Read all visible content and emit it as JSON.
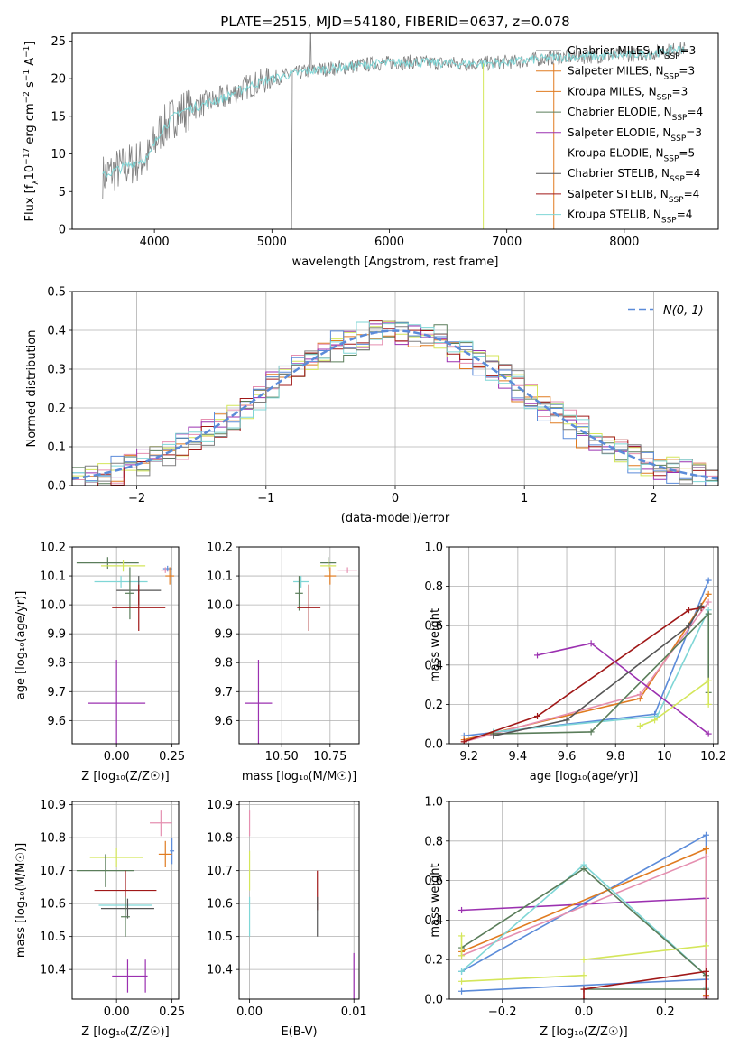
{
  "title": "PLATE=2515, MJD=54180, FIBERID=0637, z=0.078",
  "colors": {
    "grey": "#808080",
    "orange": "#e07b20",
    "pink": "#e58fb0",
    "green": "#5a7d5a",
    "purple": "#9b30b0",
    "yellowgreen": "#d4e65a",
    "darkgrey": "#555555",
    "red": "#a01818",
    "cyan": "#7fd6d6",
    "blue": "#5b8bd9"
  },
  "chart_data": [
    {
      "id": "spectrum",
      "type": "line",
      "xlabel": "wavelength [Angstrom, rest frame]",
      "ylabel": "Flux [f_λ10^-17 erg cm^-2 s^-1 A^-1]",
      "xlim": [
        3300,
        8800
      ],
      "ylim": [
        0,
        26
      ],
      "xticks": [
        4000,
        5000,
        6000,
        7000,
        8000
      ],
      "yticks": [
        0,
        5,
        10,
        15,
        20,
        25
      ],
      "grid": false,
      "legend_position": "right",
      "continuum": {
        "x": [
          3550,
          3700,
          3850,
          3950,
          4050,
          4200,
          4400,
          4600,
          4800,
          5000,
          5300,
          5600,
          5900,
          6200,
          6500,
          6800,
          7100,
          7400,
          7800,
          8200,
          8500
        ],
        "y": [
          7,
          8,
          9,
          9.5,
          13,
          15.5,
          16.5,
          17.5,
          19,
          20,
          21,
          21.5,
          22,
          22.2,
          22,
          22,
          22.3,
          22.8,
          23,
          23.3,
          24
        ]
      },
      "legend": [
        {
          "label": "Chabrier MILES, N",
          "sub": "SSP",
          "suffix": "=3",
          "color": "grey"
        },
        {
          "label": "Salpeter MILES, N",
          "sub": "SSP",
          "suffix": "=3",
          "color": "orange"
        },
        {
          "label": "Kroupa MILES, N",
          "sub": "SSP",
          "suffix": "=3",
          "color": "orange"
        },
        {
          "label": "Chabrier ELODIE, N",
          "sub": "SSP",
          "suffix": "=4",
          "color": "green"
        },
        {
          "label": "Salpeter ELODIE, N",
          "sub": "SSP",
          "suffix": "=3",
          "color": "purple"
        },
        {
          "label": "Kroupa ELODIE, N",
          "sub": "SSP",
          "suffix": "=5",
          "color": "yellowgreen"
        },
        {
          "label": "Chabrier STELIB, N",
          "sub": "SSP",
          "suffix": "=4",
          "color": "darkgrey"
        },
        {
          "label": "Salpeter STELIB, N",
          "sub": "SSP",
          "suffix": "=4",
          "color": "red"
        },
        {
          "label": "Kroupa STELIB, N",
          "sub": "SSP",
          "suffix": "=4",
          "color": "cyan"
        }
      ]
    },
    {
      "id": "residuals",
      "type": "histogram",
      "xlabel": "(data-model)/error",
      "ylabel": "Normed distribution",
      "xlim": [
        -2.5,
        2.5
      ],
      "ylim": [
        0,
        0.5
      ],
      "xticks": [
        -2,
        -1,
        0,
        1,
        2
      ],
      "yticks": [
        0.0,
        0.1,
        0.2,
        0.3,
        0.4,
        0.5
      ],
      "grid": true,
      "legend_position": "upper right",
      "gaussian_label": "N(0, 1)",
      "bin_width": 0.1,
      "histogram_colors": [
        "orange",
        "pink",
        "green",
        "purple",
        "yellowgreen",
        "red",
        "blue",
        "cyan",
        "grey"
      ]
    },
    {
      "id": "age-vs-Z",
      "type": "errorbar",
      "xlabel": "Z [log10(Z/Z☉)]",
      "ylabel": "age [log10(age/yr)]",
      "xlim": [
        -0.2,
        0.28
      ],
      "ylim": [
        9.52,
        10.2
      ],
      "xticks": [
        0.0,
        0.25
      ],
      "xtick_labels": [
        "0.00",
        "0.25"
      ],
      "yticks": [
        9.6,
        9.7,
        9.8,
        9.9,
        10.0,
        10.1,
        10.2
      ],
      "grid": true,
      "points": [
        {
          "color": "green",
          "x": -0.04,
          "xerr": 0.14,
          "y": 10.145,
          "yerr": 0.02
        },
        {
          "color": "yellowgreen",
          "x": 0.03,
          "xerr": 0.1,
          "y": 10.135,
          "yerr": 0.02
        },
        {
          "color": "blue",
          "x": 0.23,
          "xerr": 0.02,
          "y": 10.125,
          "yerr": 0.01
        },
        {
          "color": "pink",
          "x": 0.22,
          "xerr": 0.02,
          "y": 10.12,
          "yerr": 0.01
        },
        {
          "color": "orange",
          "x": 0.24,
          "xerr": 0.02,
          "y": 10.1,
          "yerr": 0.03
        },
        {
          "color": "cyan",
          "x": 0.02,
          "xerr": 0.12,
          "y": 10.08,
          "yerr": 0.02
        },
        {
          "color": "darkgrey",
          "x": 0.1,
          "xerr": 0.1,
          "y": 10.05,
          "yerr": 0.05
        },
        {
          "color": "green",
          "x": 0.06,
          "xerr": 0.02,
          "y": 10.04,
          "yerr": 0.09
        },
        {
          "color": "red",
          "x": 0.1,
          "xerr": 0.12,
          "y": 9.99,
          "yerr": 0.08
        },
        {
          "color": "purple",
          "x": 0.0,
          "xerr": 0.13,
          "y": 9.66,
          "yerr": 0.15
        }
      ]
    },
    {
      "id": "age-vs-mass",
      "type": "errorbar",
      "xlabel": "mass [log10(M/M☉)]",
      "xlim": [
        10.28,
        10.9
      ],
      "ylim": [
        9.52,
        10.2
      ],
      "xticks": [
        10.5,
        10.75
      ],
      "xtick_labels": [
        "10.50",
        "10.75"
      ],
      "yticks": [
        9.6,
        9.7,
        9.8,
        9.9,
        10.0,
        10.1,
        10.2
      ],
      "grid": true,
      "points": [
        {
          "color": "green",
          "x": 10.74,
          "xerr": 0.04,
          "y": 10.145,
          "yerr": 0.02
        },
        {
          "color": "yellowgreen",
          "x": 10.74,
          "xerr": 0.04,
          "y": 10.135,
          "yerr": 0.02
        },
        {
          "color": "pink",
          "x": 10.84,
          "xerr": 0.05,
          "y": 10.12,
          "yerr": 0.01
        },
        {
          "color": "orange",
          "x": 10.75,
          "xerr": 0.03,
          "y": 10.1,
          "yerr": 0.03
        },
        {
          "color": "cyan",
          "x": 10.6,
          "xerr": 0.04,
          "y": 10.08,
          "yerr": 0.02
        },
        {
          "color": "green",
          "x": 10.59,
          "xerr": 0.02,
          "y": 10.04,
          "yerr": 0.06
        },
        {
          "color": "red",
          "x": 10.64,
          "xerr": 0.06,
          "y": 9.99,
          "yerr": 0.08
        },
        {
          "color": "purple",
          "x": 10.38,
          "xerr": 0.07,
          "y": 9.66,
          "yerr": 0.15
        }
      ]
    },
    {
      "id": "weight-vs-age",
      "type": "line",
      "xlabel": "age [log10(age/yr)]",
      "ylabel": "mass weight",
      "xlim": [
        9.12,
        10.22
      ],
      "ylim": [
        0,
        1.0
      ],
      "xticks": [
        9.2,
        9.4,
        9.6,
        9.8,
        10.0,
        10.2
      ],
      "yticks": [
        0.0,
        0.2,
        0.4,
        0.6,
        0.8,
        1.0
      ],
      "grid": true,
      "series": [
        {
          "color": "blue",
          "x": [
            9.18,
            9.96,
            10.18
          ],
          "y": [
            0.04,
            0.15,
            0.83
          ]
        },
        {
          "color": "orange",
          "x": [
            9.18,
            9.9,
            10.18
          ],
          "y": [
            0.02,
            0.23,
            0.76
          ]
        },
        {
          "color": "pink",
          "x": [
            9.18,
            9.9,
            10.18
          ],
          "y": [
            0.01,
            0.25,
            0.72
          ]
        },
        {
          "color": "cyan",
          "x": [
            9.3,
            9.97,
            10.18
          ],
          "y": [
            0.06,
            0.14,
            0.68
          ]
        },
        {
          "color": "green",
          "x": [
            9.3,
            9.7,
            10.18,
            10.18
          ],
          "y": [
            0.05,
            0.06,
            0.66,
            0.26
          ]
        },
        {
          "color": "red",
          "x": [
            9.18,
            9.48,
            10.1,
            10.15
          ],
          "y": [
            0.01,
            0.14,
            0.68,
            0.69
          ]
        },
        {
          "color": "purple",
          "x": [
            9.48,
            9.7,
            10.18
          ],
          "y": [
            0.45,
            0.51,
            0.05
          ]
        },
        {
          "color": "yellowgreen",
          "x": [
            9.9,
            9.96,
            10.18,
            10.18
          ],
          "y": [
            0.09,
            0.12,
            0.32,
            0.2
          ]
        },
        {
          "color": "darkgrey",
          "x": [
            9.3,
            9.6,
            10.1,
            10.15
          ],
          "y": [
            0.04,
            0.12,
            0.6,
            0.7
          ]
        }
      ]
    },
    {
      "id": "mass-vs-Z",
      "type": "errorbar",
      "xlabel": "Z [log10(Z/Z☉)]",
      "ylabel": "mass [log10(M/M☉)]",
      "xlim": [
        -0.2,
        0.28
      ],
      "ylim": [
        10.31,
        10.91
      ],
      "xticks": [
        0.0,
        0.25
      ],
      "xtick_labels": [
        "0.00",
        "0.25"
      ],
      "yticks": [
        10.4,
        10.5,
        10.6,
        10.7,
        10.8,
        10.9
      ],
      "grid": true,
      "points": [
        {
          "color": "pink",
          "x": 0.2,
          "xerr": 0.05,
          "y": 10.845,
          "yerr": 0.04
        },
        {
          "color": "blue",
          "x": 0.25,
          "xerr": 0.01,
          "y": 10.76,
          "yerr": 0.04
        },
        {
          "color": "orange",
          "x": 0.22,
          "xerr": 0.03,
          "y": 10.75,
          "yerr": 0.04
        },
        {
          "color": "yellowgreen",
          "x": 0.0,
          "xerr": 0.12,
          "y": 10.74,
          "yerr": 0.03
        },
        {
          "color": "green",
          "x": -0.05,
          "xerr": 0.13,
          "y": 10.7,
          "yerr": 0.05
        },
        {
          "color": "red",
          "x": 0.04,
          "xerr": 0.14,
          "y": 10.64,
          "yerr": 0.06
        },
        {
          "color": "cyan",
          "x": 0.04,
          "xerr": 0.12,
          "y": 10.595,
          "yerr": 0.02
        },
        {
          "color": "darkgrey",
          "x": 0.05,
          "xerr": 0.12,
          "y": 10.585,
          "yerr": 0.03
        },
        {
          "color": "green",
          "x": 0.04,
          "xerr": 0.02,
          "y": 10.56,
          "yerr": 0.06
        },
        {
          "color": "purple",
          "x": 0.05,
          "xerr": 0.07,
          "y": 10.38,
          "yerr": 0.05
        },
        {
          "color": "purple",
          "x": 0.13,
          "xerr": 0.01,
          "y": 10.38,
          "yerr": 0.05
        }
      ]
    },
    {
      "id": "mass-vs-EBV",
      "type": "errorbar",
      "xlabel": "E(B-V)",
      "xlim": [
        -0.001,
        0.0105
      ],
      "ylim": [
        10.31,
        10.91
      ],
      "xticks": [
        0.0,
        0.01
      ],
      "xtick_labels": [
        "0.00",
        "0.01"
      ],
      "yticks": [
        10.4,
        10.5,
        10.6,
        10.7,
        10.8,
        10.9
      ],
      "grid": true,
      "points": [
        {
          "color": "pink",
          "x": 0.0,
          "xerr": 0,
          "y": 10.845,
          "yerr": 0.04
        },
        {
          "color": "yellowgreen",
          "x": 0.0,
          "xerr": 0,
          "y": 10.7,
          "yerr": 0.06
        },
        {
          "color": "cyan",
          "x": 0.0,
          "xerr": 0,
          "y": 10.56,
          "yerr": 0.06
        },
        {
          "color": "red",
          "x": 0.0065,
          "xerr": 0,
          "y": 10.64,
          "yerr": 0.06
        },
        {
          "color": "darkgrey",
          "x": 0.0065,
          "xerr": 0,
          "y": 10.56,
          "yerr": 0.06
        },
        {
          "color": "purple",
          "x": 0.01,
          "xerr": 0,
          "y": 10.38,
          "yerr": 0.07
        }
      ]
    },
    {
      "id": "weight-vs-Z",
      "type": "line",
      "xlabel": "Z [log10(Z/Z☉)]",
      "ylabel": "mass weight",
      "xlim": [
        -0.33,
        0.33
      ],
      "ylim": [
        0,
        1.0
      ],
      "xticks": [
        -0.2,
        0.0,
        0.2
      ],
      "xtick_labels": [
        "−0.2",
        "0.0",
        "0.2"
      ],
      "yticks": [
        0.0,
        0.2,
        0.4,
        0.6,
        0.8,
        1.0
      ],
      "grid": true,
      "series": [
        {
          "color": "purple",
          "x": [
            -0.3,
            0.3,
            0.3
          ],
          "y": [
            0.45,
            0.51,
            0.05
          ]
        },
        {
          "color": "blue",
          "x": [
            -0.3,
            0.3,
            0.3,
            -0.3
          ],
          "y": [
            0.14,
            0.83,
            0.1,
            0.04
          ]
        },
        {
          "color": "orange",
          "x": [
            -0.3,
            0.3,
            0.3
          ],
          "y": [
            0.24,
            0.76,
            0.02
          ]
        },
        {
          "color": "pink",
          "x": [
            -0.3,
            0.3,
            0.3
          ],
          "y": [
            0.22,
            0.72,
            0.01
          ]
        },
        {
          "color": "cyan",
          "x": [
            -0.3,
            0.0,
            0.3,
            0.3
          ],
          "y": [
            0.14,
            0.68,
            0.12,
            0.06
          ]
        },
        {
          "color": "green",
          "x": [
            -0.3,
            0.0,
            0.3,
            0.3
          ],
          "y": [
            0.26,
            0.66,
            0.12,
            0.05
          ]
        },
        {
          "color": "green",
          "x": [
            0.0,
            0.3
          ],
          "y": [
            0.05,
            0.05
          ]
        },
        {
          "color": "red",
          "x": [
            0.0,
            0.0,
            0.3,
            0.3
          ],
          "y": [
            0.0,
            0.05,
            0.14,
            0.0
          ]
        },
        {
          "color": "yellowgreen",
          "x": [
            -0.3,
            0.0
          ],
          "y": [
            0.09,
            0.12
          ]
        },
        {
          "color": "yellowgreen",
          "x": [
            0.0,
            0.3
          ],
          "y": [
            0.2,
            0.27
          ]
        },
        {
          "color": "yellowgreen",
          "x": [
            -0.3,
            -0.3
          ],
          "y": [
            0.32,
            0.22
          ]
        }
      ]
    }
  ]
}
